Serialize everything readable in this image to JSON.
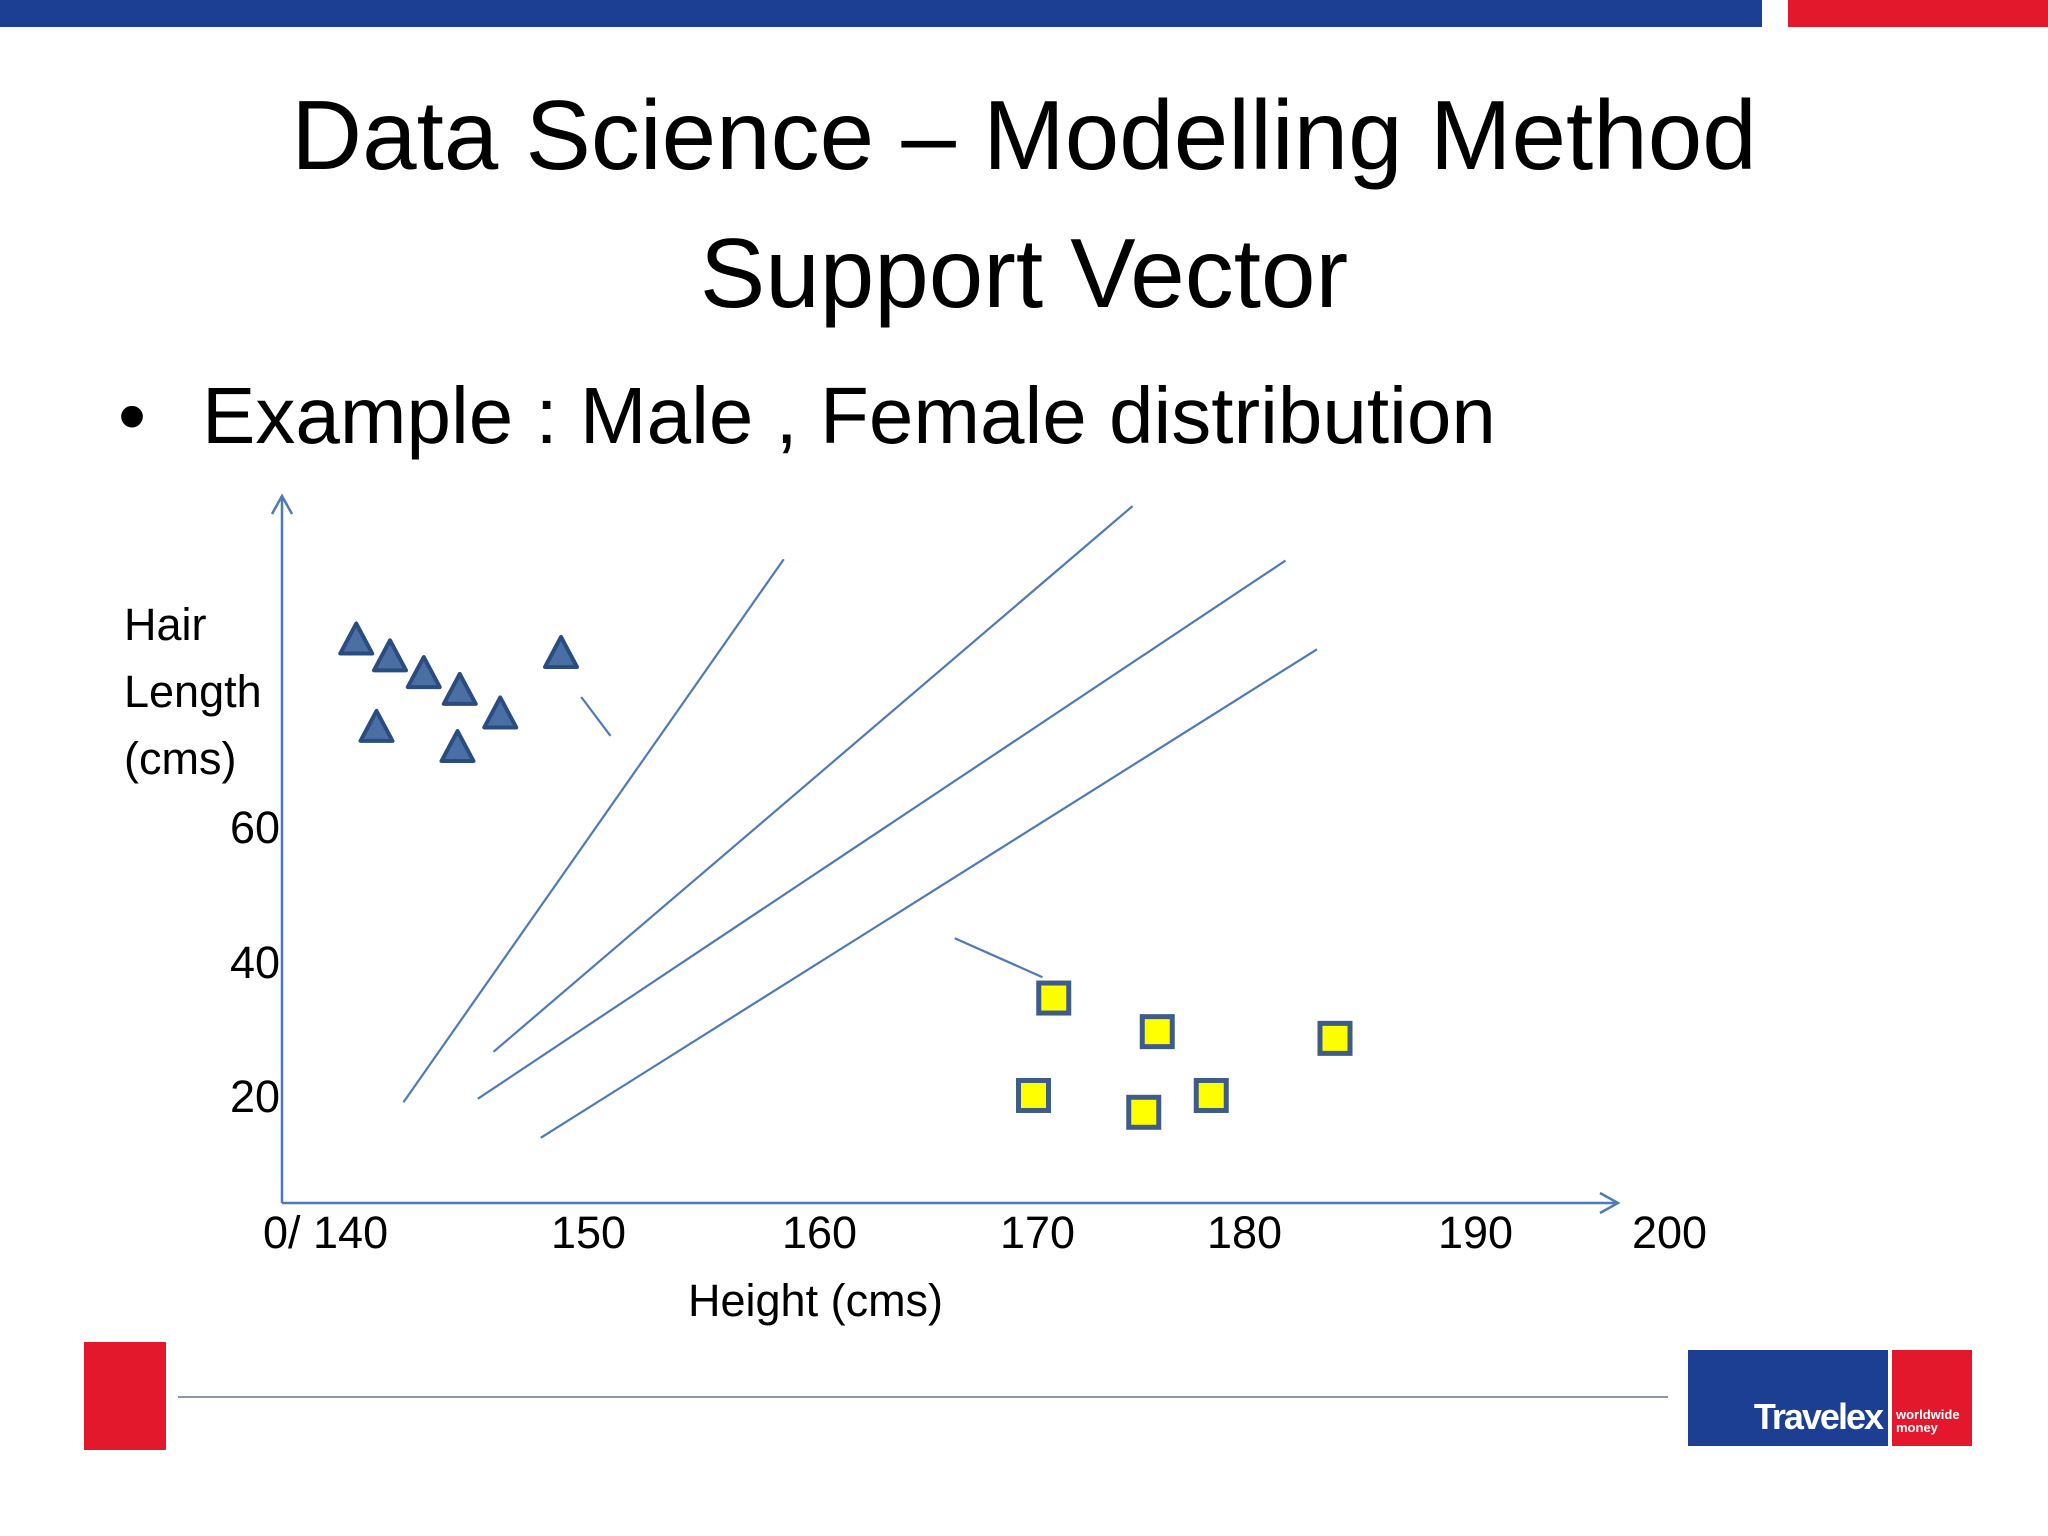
{
  "title": {
    "line1": "Data Science – Modelling Method",
    "line2": "Support Vector"
  },
  "bullet": {
    "symbol": "•",
    "text": "Example : Male , Female distribution"
  },
  "colors": {
    "brand_blue": "#1c3f94",
    "brand_red": "#e3182d",
    "triangle_fill": "#4a6fa5",
    "triangle_stroke": "#2b4c7e",
    "square_fill": "#ffff00",
    "square_stroke": "#3f5b87",
    "line": "#4f7ab8"
  },
  "icons": {
    "bullet": "bullet-dot",
    "female_marker": "triangle",
    "male_marker": "square"
  },
  "chart_data": {
    "type": "scatter",
    "title": "",
    "xlabel": "Height (cms)",
    "ylabel_lines": [
      "Hair",
      "Length",
      "(cms)"
    ],
    "x_ticks": [
      "0/ 140",
      "150",
      "160",
      "170",
      "180",
      "190",
      "200"
    ],
    "y_ticks": [
      "20",
      "40",
      "60"
    ],
    "xlim": [
      140,
      200
    ],
    "ylim": [
      0,
      85
    ],
    "grid": false,
    "legend": "none",
    "series": [
      {
        "marker": "triangle",
        "points": [
          [
            143.3,
            84
          ],
          [
            144.8,
            81.5
          ],
          [
            146.3,
            79
          ],
          [
            147.9,
            76.5
          ],
          [
            152.4,
            82
          ],
          [
            149.7,
            73
          ],
          [
            144.2,
            71
          ],
          [
            147.8,
            68
          ]
        ]
      },
      {
        "marker": "square",
        "points": [
          [
            174.3,
            30.5
          ],
          [
            178.9,
            25.5
          ],
          [
            186.8,
            24.5
          ],
          [
            173.4,
            16
          ],
          [
            181.3,
            16
          ],
          [
            178.3,
            13.5
          ]
        ]
      }
    ],
    "separating_lines": [
      {
        "x": [
          145.4,
          162.3
        ],
        "y": [
          15,
          95.8
        ]
      },
      {
        "x": [
          149.4,
          177.8
        ],
        "y": [
          22.5,
          103.7
        ]
      },
      {
        "x": [
          148.7,
          184.6
        ],
        "y": [
          15.5,
          95.6
        ]
      },
      {
        "x": [
          151.5,
          186.0
        ],
        "y": [
          9.7,
          82.4
        ]
      }
    ],
    "pointers": [
      {
        "x": [
          153.3,
          154.6
        ],
        "y": [
          75.3,
          69.5
        ]
      },
      {
        "x": [
          169.9,
          173.8
        ],
        "y": [
          39.4,
          33.6
        ]
      }
    ]
  },
  "footer": {
    "logo_name": "Travelex",
    "logo_tagline": "worldwide money"
  }
}
